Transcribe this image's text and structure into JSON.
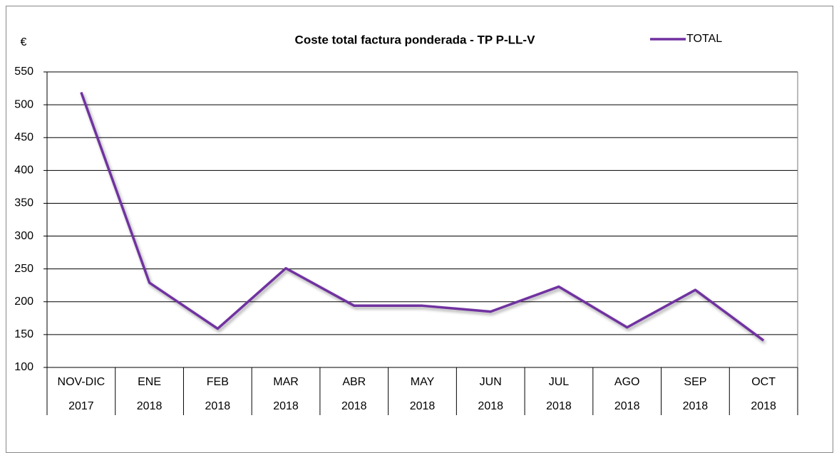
{
  "chart_data": {
    "type": "line",
    "title": "Coste total factura ponderada - TP P-LL-V",
    "y_label": "€",
    "categories": [
      [
        "NOV-DIC",
        "2017"
      ],
      [
        "ENE",
        "2018"
      ],
      [
        "FEB",
        "2018"
      ],
      [
        "MAR",
        "2018"
      ],
      [
        "ABR",
        "2018"
      ],
      [
        "MAY",
        "2018"
      ],
      [
        "JUN",
        "2018"
      ],
      [
        "JUL",
        "2018"
      ],
      [
        "AGO",
        "2018"
      ],
      [
        "SEP",
        "2018"
      ],
      [
        "OCT",
        "2018"
      ]
    ],
    "series": [
      {
        "name": "TOTAL",
        "color": "#7030a0",
        "values": [
          519,
          229,
          159,
          251,
          194,
          194,
          185,
          223,
          161,
          218,
          141
        ]
      }
    ],
    "ylim": [
      100,
      550
    ],
    "yticks": [
      100,
      150,
      200,
      250,
      300,
      350,
      400,
      450,
      500,
      550
    ],
    "grid": true,
    "legend": "top-right"
  }
}
